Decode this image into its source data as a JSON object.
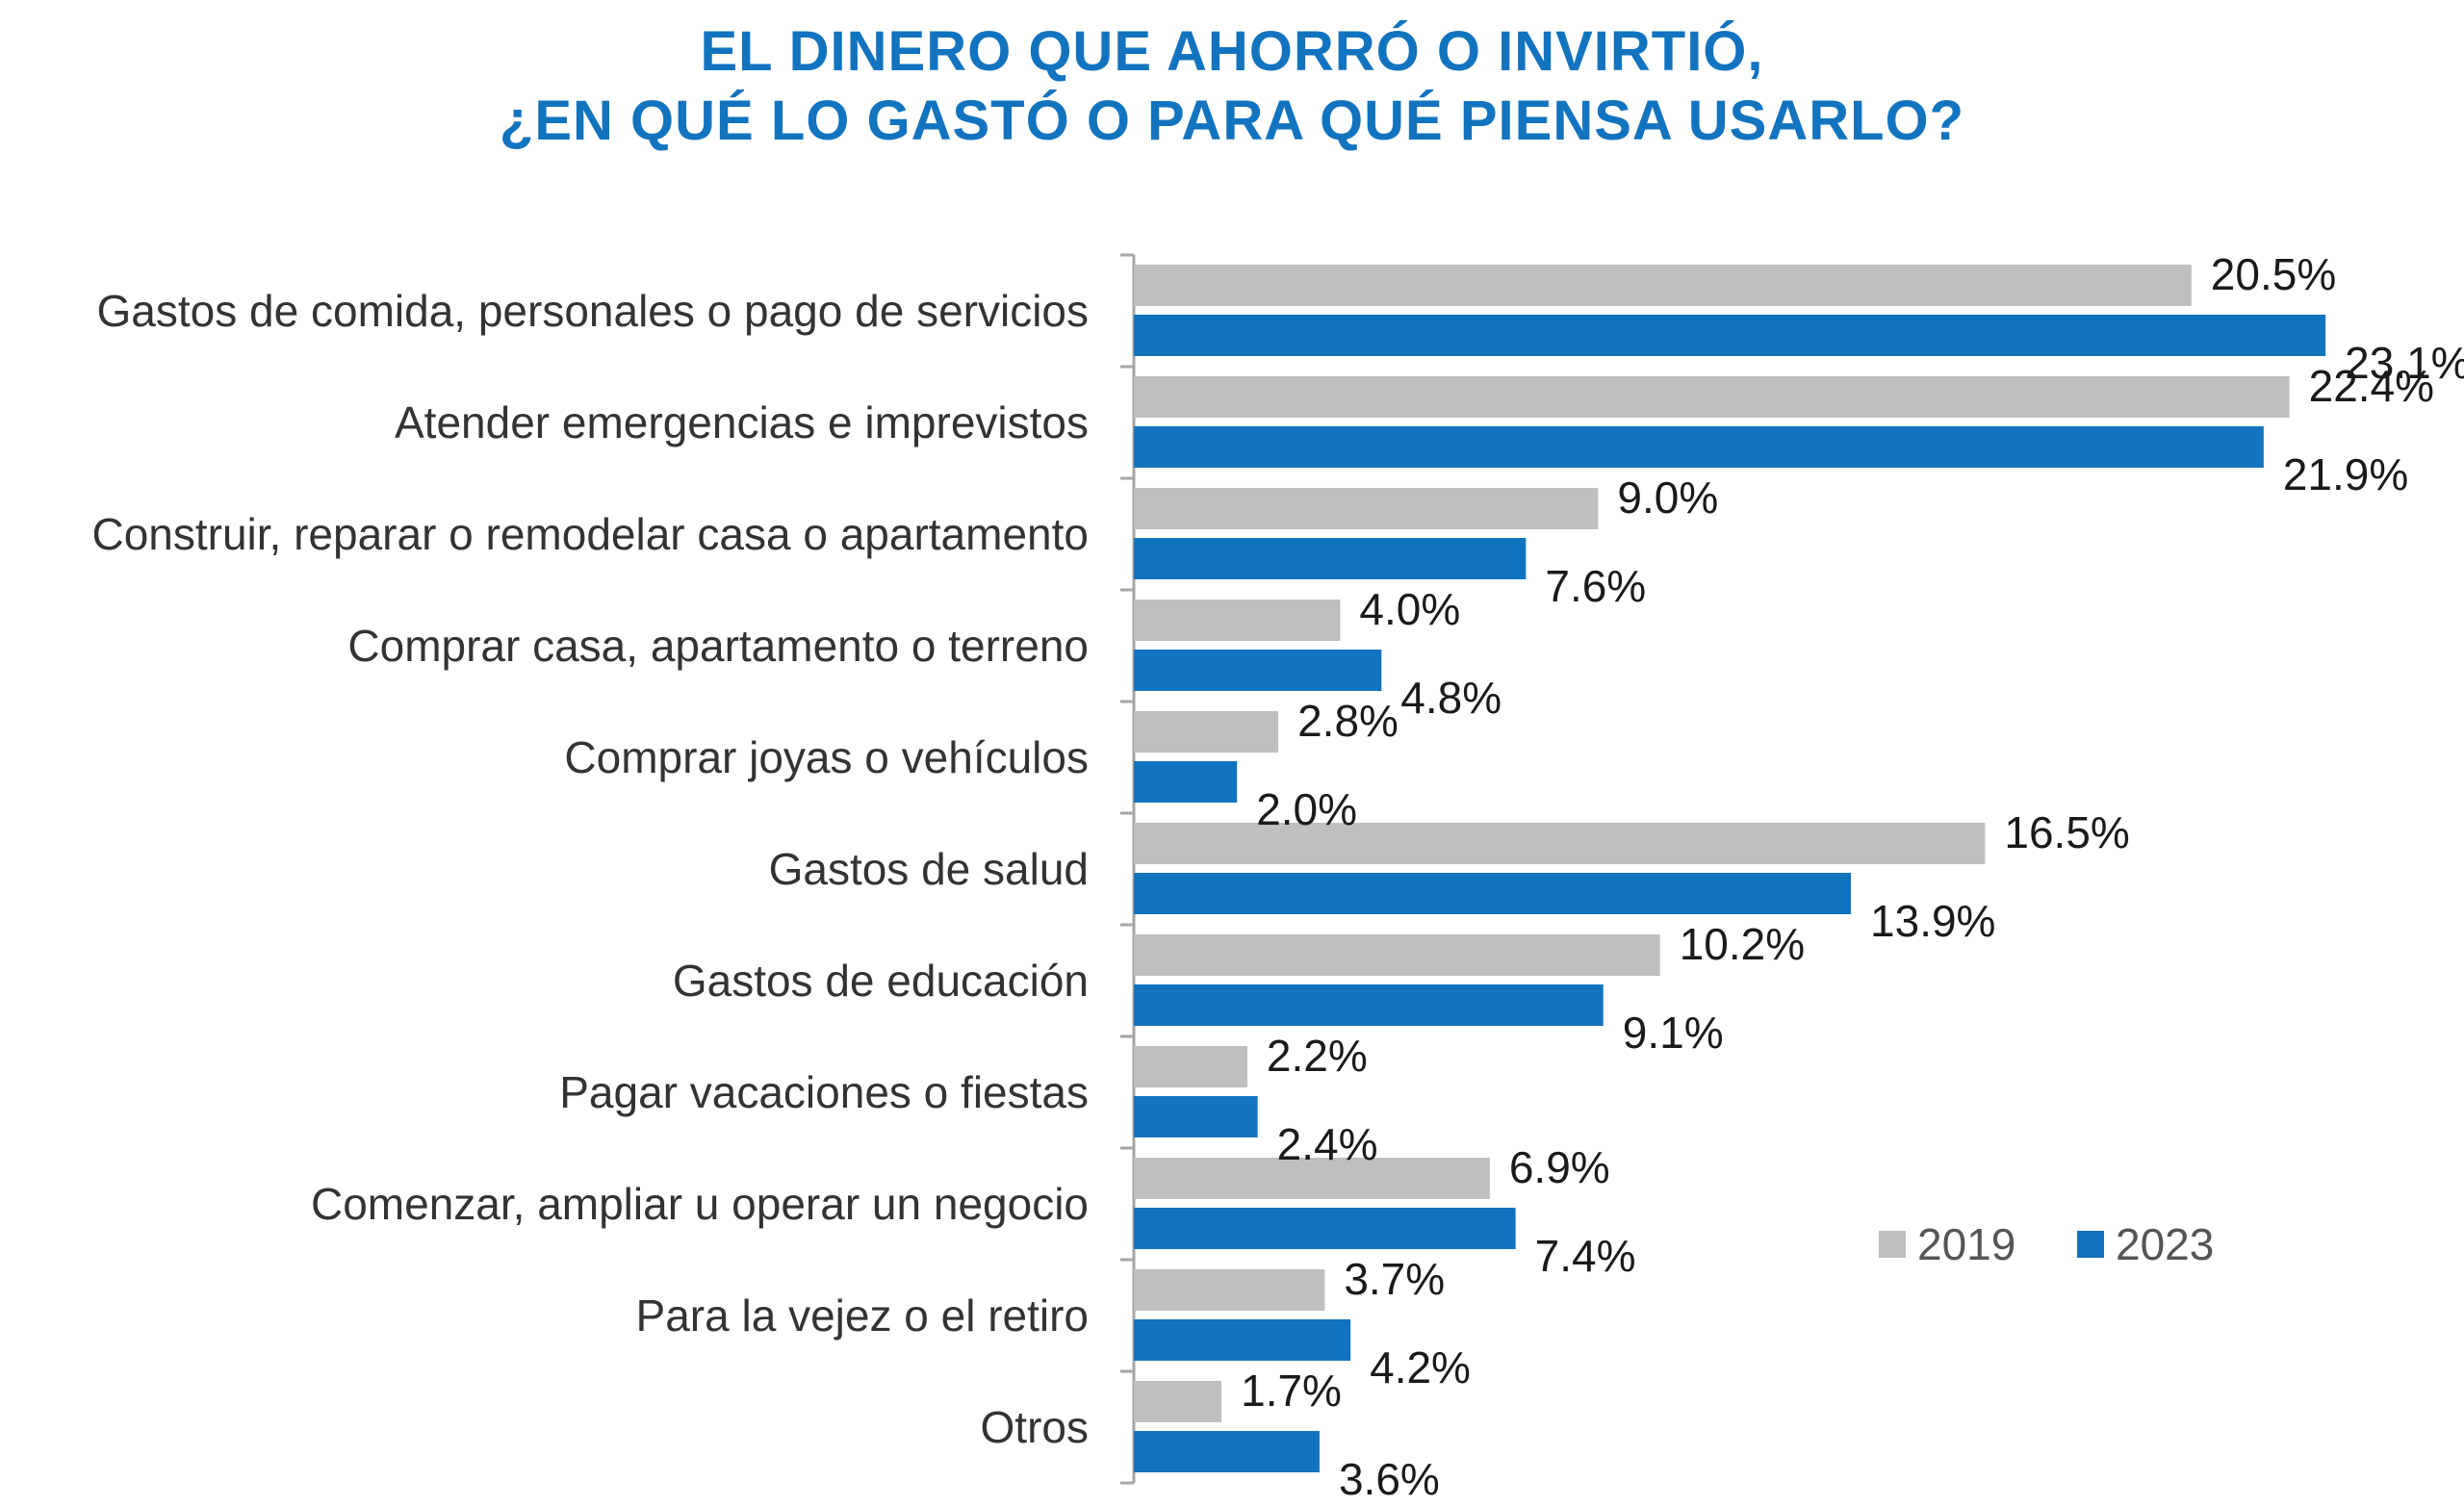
{
  "chart_data": {
    "type": "bar",
    "orientation": "horizontal",
    "title_lines": [
      "EL DINERO QUE AHORRÓ O INVIRTIÓ,",
      "¿EN QUÉ LO GASTÓ O PARA QUÉ PIENSA USARLO?"
    ],
    "categories": [
      "Gastos de comida, personales o pago de servicios",
      "Atender emergencias e imprevistos",
      "Construir, reparar o remodelar casa o apartamento",
      "Comprar casa, apartamento o terreno",
      "Comprar joyas o vehículos",
      "Gastos de salud",
      "Gastos de educación",
      "Pagar vacaciones o fiestas",
      "Comenzar, ampliar u operar un negocio",
      "Para la vejez o el retiro",
      "Otros"
    ],
    "series": [
      {
        "name": "2019",
        "color": "#bfbfbf",
        "values": [
          20.5,
          22.4,
          9.0,
          4.0,
          2.8,
          16.5,
          10.2,
          2.2,
          6.9,
          3.7,
          1.7
        ],
        "labels": [
          "20.5%",
          "22.4%",
          "9.0%",
          "4.0%",
          "2.8%",
          "16.5%",
          "10.2%",
          "2.2%",
          "6.9%",
          "3.7%",
          "1.7%"
        ]
      },
      {
        "name": "2023",
        "color": "#1273bf",
        "values": [
          23.1,
          21.9,
          7.6,
          4.8,
          2.0,
          13.9,
          9.1,
          2.4,
          7.4,
          4.2,
          3.6
        ],
        "labels": [
          "23.1%",
          "21.9%",
          "7.6%",
          "4.8%",
          "2.0%",
          "13.9%",
          "9.1%",
          "2.4%",
          "7.4%",
          "4.2%",
          "3.6%"
        ]
      }
    ],
    "xlim": [
      0,
      25
    ],
    "grid": false,
    "legend_position": "bottom-right",
    "axis_color": "#a6a6a6"
  }
}
